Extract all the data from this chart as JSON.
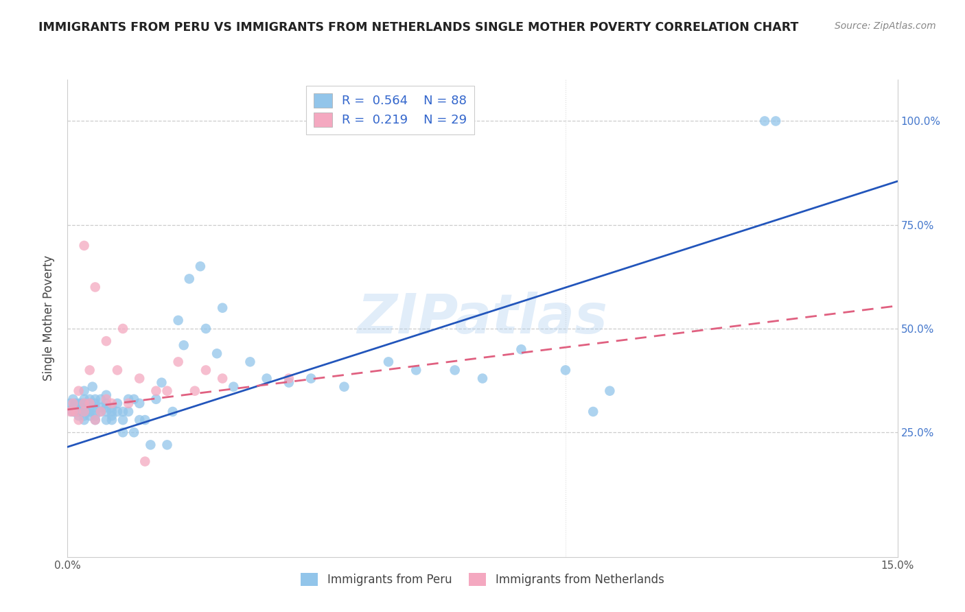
{
  "title": "IMMIGRANTS FROM PERU VS IMMIGRANTS FROM NETHERLANDS SINGLE MOTHER POVERTY CORRELATION CHART",
  "source": "Source: ZipAtlas.com",
  "ylabel": "Single Mother Poverty",
  "xlim": [
    0.0,
    0.15
  ],
  "ylim": [
    -0.05,
    1.1
  ],
  "blue_color": "#92C5EA",
  "pink_color": "#F4A8C0",
  "blue_line_color": "#2255BB",
  "pink_line_color": "#E06080",
  "R_blue": "0.564",
  "N_blue": "88",
  "R_pink": "0.219",
  "N_pink": "29",
  "legend_labels": [
    "Immigrants from Peru",
    "Immigrants from Netherlands"
  ],
  "watermark": "ZIPatlas",
  "peru_x": [
    0.0005,
    0.0008,
    0.001,
    0.001,
    0.0012,
    0.0013,
    0.0015,
    0.0015,
    0.0018,
    0.002,
    0.002,
    0.002,
    0.002,
    0.0022,
    0.0025,
    0.0025,
    0.003,
    0.003,
    0.003,
    0.003,
    0.003,
    0.003,
    0.003,
    0.0035,
    0.004,
    0.004,
    0.004,
    0.004,
    0.0042,
    0.0045,
    0.005,
    0.005,
    0.005,
    0.005,
    0.005,
    0.005,
    0.006,
    0.006,
    0.006,
    0.007,
    0.007,
    0.007,
    0.007,
    0.007,
    0.008,
    0.008,
    0.008,
    0.008,
    0.009,
    0.009,
    0.01,
    0.01,
    0.01,
    0.011,
    0.011,
    0.012,
    0.012,
    0.013,
    0.013,
    0.014,
    0.015,
    0.016,
    0.017,
    0.018,
    0.019,
    0.02,
    0.021,
    0.022,
    0.024,
    0.025,
    0.027,
    0.028,
    0.03,
    0.033,
    0.036,
    0.04,
    0.044,
    0.05,
    0.058,
    0.063,
    0.07,
    0.075,
    0.082,
    0.09,
    0.095,
    0.098,
    0.126,
    0.128
  ],
  "peru_y": [
    0.32,
    0.3,
    0.31,
    0.33,
    0.3,
    0.31,
    0.3,
    0.32,
    0.3,
    0.3,
    0.31,
    0.32,
    0.29,
    0.31,
    0.3,
    0.32,
    0.28,
    0.3,
    0.31,
    0.32,
    0.33,
    0.35,
    0.29,
    0.3,
    0.3,
    0.31,
    0.33,
    0.29,
    0.32,
    0.36,
    0.28,
    0.3,
    0.32,
    0.31,
    0.29,
    0.33,
    0.3,
    0.31,
    0.33,
    0.3,
    0.31,
    0.28,
    0.32,
    0.34,
    0.3,
    0.29,
    0.31,
    0.28,
    0.3,
    0.32,
    0.28,
    0.3,
    0.25,
    0.33,
    0.3,
    0.25,
    0.33,
    0.28,
    0.32,
    0.28,
    0.22,
    0.33,
    0.37,
    0.22,
    0.3,
    0.52,
    0.46,
    0.62,
    0.65,
    0.5,
    0.44,
    0.55,
    0.36,
    0.42,
    0.38,
    0.37,
    0.38,
    0.36,
    0.42,
    0.4,
    0.4,
    0.38,
    0.45,
    0.4,
    0.3,
    0.35,
    1.0,
    1.0
  ],
  "neth_x": [
    0.0005,
    0.001,
    0.001,
    0.0015,
    0.002,
    0.002,
    0.003,
    0.003,
    0.003,
    0.004,
    0.004,
    0.005,
    0.005,
    0.006,
    0.007,
    0.007,
    0.008,
    0.009,
    0.01,
    0.011,
    0.013,
    0.014,
    0.016,
    0.018,
    0.02,
    0.023,
    0.025,
    0.028,
    0.04
  ],
  "neth_y": [
    0.3,
    0.3,
    0.32,
    0.3,
    0.28,
    0.35,
    0.32,
    0.3,
    0.7,
    0.32,
    0.4,
    0.28,
    0.6,
    0.3,
    0.47,
    0.33,
    0.32,
    0.4,
    0.5,
    0.32,
    0.38,
    0.18,
    0.35,
    0.35,
    0.42,
    0.35,
    0.4,
    0.38,
    0.38
  ],
  "blue_line_x0": 0.0,
  "blue_line_y0": 0.215,
  "blue_line_x1": 0.15,
  "blue_line_y1": 0.855,
  "pink_line_x0": 0.0,
  "pink_line_y0": 0.305,
  "pink_line_x1": 0.15,
  "pink_line_y1": 0.555
}
